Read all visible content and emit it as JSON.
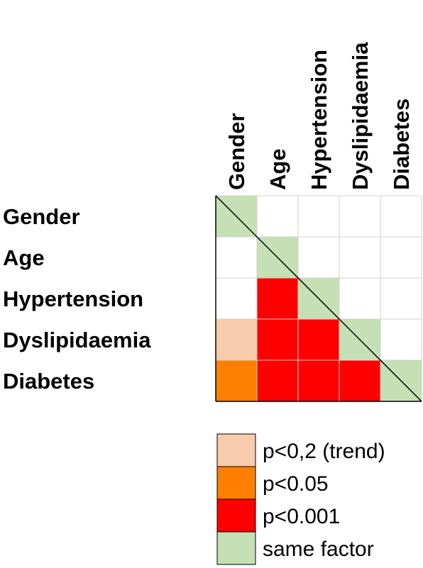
{
  "chart_data": {
    "type": "heatmap",
    "layout": "lower-triangular correlation matrix",
    "row_labels": [
      "Gender",
      "Age",
      "Hypertension",
      "Dyslipidaemia",
      "Diabetes"
    ],
    "col_labels": [
      "Gender",
      "Age",
      "Hypertension",
      "Dyslipidaemia",
      "Diabetes"
    ],
    "categories": {
      "none": "#ffffff",
      "trend": "#f8cbad",
      "p005": "#ff8000",
      "p0001": "#ff0000",
      "same": "#c5e0b4"
    },
    "cells": [
      [
        "same",
        "none",
        "none",
        "none",
        "none"
      ],
      [
        "none",
        "same",
        "none",
        "none",
        "none"
      ],
      [
        "none",
        "p0001",
        "same",
        "none",
        "none"
      ],
      [
        "trend",
        "p0001",
        "p0001",
        "same",
        "none"
      ],
      [
        "p005",
        "p0001",
        "p0001",
        "p0001",
        "same"
      ]
    ],
    "diagonal_line": true,
    "legend": [
      {
        "key": "trend",
        "label": "p<0,2 (trend)"
      },
      {
        "key": "p005",
        "label": "p<0.05"
      },
      {
        "key": "p0001",
        "label": "p<0.001"
      },
      {
        "key": "same",
        "label": "same factor"
      }
    ],
    "legend_placement": "bottom",
    "grid": true
  }
}
